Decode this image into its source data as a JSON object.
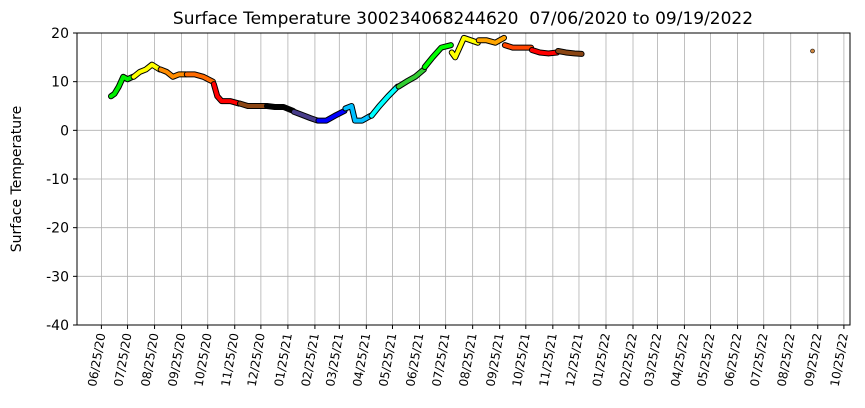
{
  "chart_data": {
    "type": "line",
    "title": "Surface Temperature 300234068244620  07/06/2020 to 09/19/2022",
    "y_label": "Surface Temperature",
    "xlim": [
      "05/28/20",
      "11/01/22"
    ],
    "xticks": [
      "06/25/20",
      "07/25/20",
      "08/25/20",
      "09/25/20",
      "10/25/20",
      "11/25/20",
      "12/25/20",
      "01/25/21",
      "02/25/21",
      "03/25/21",
      "04/25/21",
      "05/25/21",
      "06/25/21",
      "07/25/21",
      "08/25/21",
      "09/25/21",
      "10/25/21",
      "11/25/21",
      "12/25/21",
      "01/25/22",
      "02/25/22",
      "03/25/22",
      "04/25/22",
      "05/25/22",
      "06/25/22",
      "07/25/22",
      "08/25/22",
      "09/25/22",
      "10/25/22"
    ],
    "ylim": [
      -40,
      20
    ],
    "yticks": [
      -40,
      -30,
      -20,
      -10,
      0,
      10,
      20
    ],
    "grid": true,
    "series": [
      {
        "color": "#00ee00",
        "x": [
          "07/06/20",
          "07/10/20",
          "07/15/20",
          "07/20/20",
          "07/25/20",
          "07/31/20"
        ],
        "values": [
          7,
          7.5,
          9,
          11,
          10.5,
          11
        ]
      },
      {
        "color": "#ffff00",
        "x": [
          "08/01/20",
          "08/08/20",
          "08/15/20",
          "08/22/20",
          "08/31/20"
        ],
        "values": [
          11,
          12,
          12.5,
          13.5,
          12.5
        ]
      },
      {
        "color": "#ff8c00",
        "x": [
          "09/01/20",
          "09/08/20",
          "09/15/20",
          "09/22/20",
          "09/30/20"
        ],
        "values": [
          12.5,
          12,
          11,
          11.5,
          11.5
        ]
      },
      {
        "color": "#ff6a00",
        "x": [
          "10/01/20",
          "10/10/20",
          "10/20/20",
          "10/31/20"
        ],
        "values": [
          11.5,
          11.5,
          11,
          10
        ]
      },
      {
        "color": "#ff0000",
        "x": [
          "11/01/20",
          "11/05/20",
          "11/10/20",
          "11/20/20",
          "11/30/20"
        ],
        "values": [
          9.5,
          7,
          6,
          6,
          5.5
        ]
      },
      {
        "color": "#8b4513",
        "x": [
          "12/01/20",
          "12/10/20",
          "12/20/20",
          "12/31/20"
        ],
        "values": [
          5.5,
          5,
          5,
          5
        ]
      },
      {
        "color": "#000000",
        "x": [
          "01/01/21",
          "01/10/21",
          "01/20/21",
          "01/31/21"
        ],
        "values": [
          5,
          4.8,
          4.8,
          4
        ]
      },
      {
        "color": "#483d8b",
        "x": [
          "02/01/21",
          "02/10/21",
          "02/20/21",
          "02/28/21"
        ],
        "values": [
          3.8,
          3.2,
          2.5,
          2
        ]
      },
      {
        "color": "#0000ff",
        "x": [
          "03/01/21",
          "03/10/21",
          "03/20/21",
          "03/31/21"
        ],
        "values": [
          2,
          2,
          3,
          4
        ]
      },
      {
        "color": "#00bfff",
        "x": [
          "04/01/21",
          "04/08/21",
          "04/12/21",
          "04/20/21",
          "04/30/21"
        ],
        "values": [
          4.5,
          5,
          2,
          2,
          3
        ]
      },
      {
        "color": "#00ffff",
        "x": [
          "05/01/21",
          "05/10/21",
          "05/20/21",
          "05/31/21"
        ],
        "values": [
          3,
          5,
          7,
          9
        ]
      },
      {
        "color": "#32cd32",
        "x": [
          "06/01/21",
          "06/10/21",
          "06/20/21",
          "06/30/21"
        ],
        "values": [
          9,
          10,
          11,
          12.5
        ]
      },
      {
        "color": "#00ff00",
        "x": [
          "07/01/21",
          "07/10/21",
          "07/20/21",
          "07/31/21"
        ],
        "values": [
          13,
          15,
          17,
          17.5
        ]
      },
      {
        "color": "#ffff00",
        "x": [
          "08/01/21",
          "08/05/21",
          "08/15/21",
          "08/31/21"
        ],
        "values": [
          16,
          15,
          19,
          18
        ]
      },
      {
        "color": "#ffa500",
        "x": [
          "09/01/21",
          "09/10/21",
          "09/20/21",
          "09/30/21"
        ],
        "values": [
          18.5,
          18.5,
          18,
          19
        ]
      },
      {
        "color": "#ff4500",
        "x": [
          "10/01/21",
          "10/10/21",
          "10/20/21",
          "10/31/21"
        ],
        "values": [
          17.5,
          17,
          17,
          17
        ]
      },
      {
        "color": "#ff0000",
        "x": [
          "11/01/21",
          "11/10/21",
          "11/20/21",
          "11/30/21"
        ],
        "values": [
          16.5,
          16,
          15.8,
          16
        ]
      },
      {
        "color": "#8b4513",
        "x": [
          "12/01/21",
          "12/10/21",
          "12/20/21",
          "12/28/21"
        ],
        "values": [
          16.3,
          16,
          15.8,
          15.7
        ]
      },
      {
        "color": "#cd853f",
        "x": [
          "09/19/22"
        ],
        "values": [
          16.3
        ]
      }
    ]
  }
}
